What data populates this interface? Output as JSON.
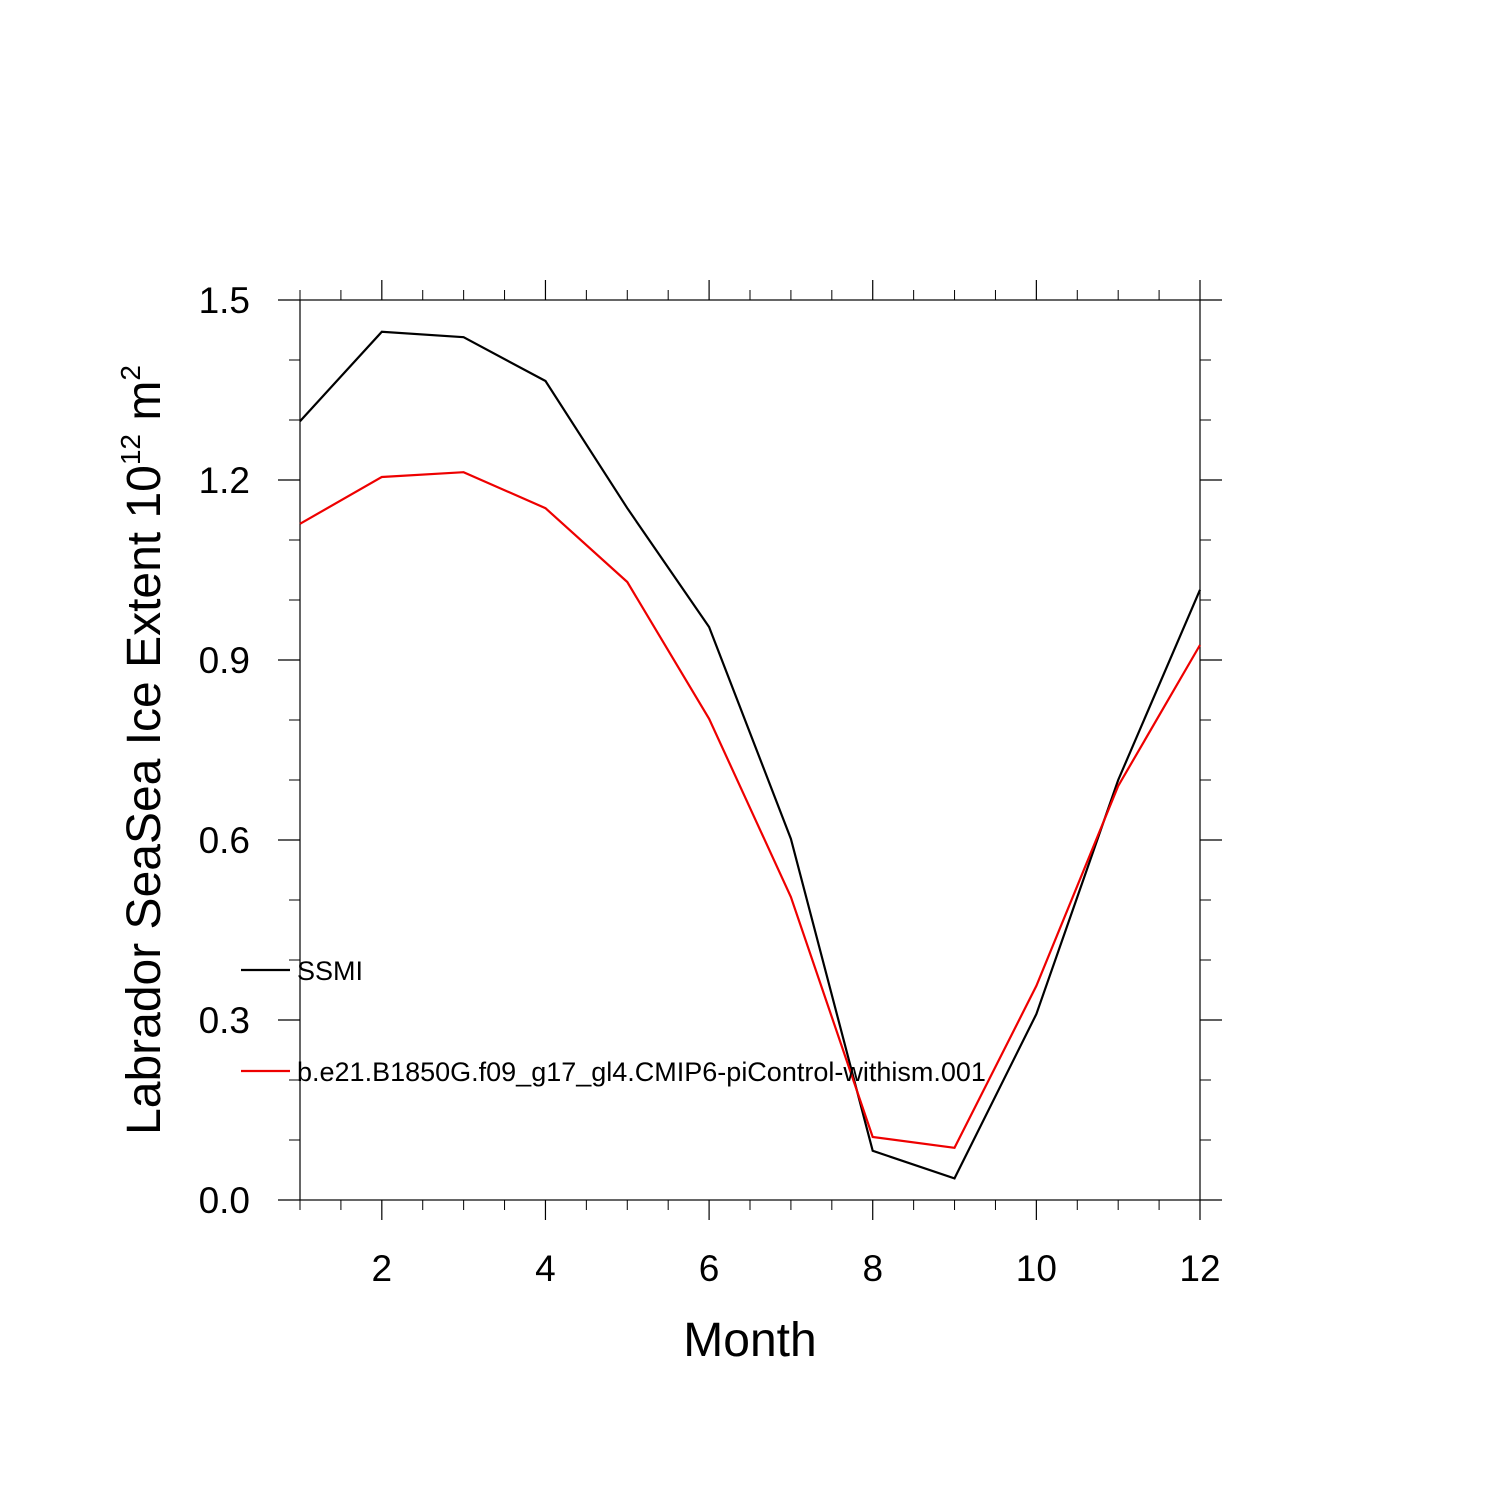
{
  "chart_data": {
    "type": "line",
    "xlabel": "Month",
    "ylabel_main": "Labrador SeaSea Ice Extent 10",
    "ylabel_exp1": "12",
    "ylabel_unit": " m",
    "ylabel_exp2": "2",
    "xlim": [
      1,
      12
    ],
    "ylim": [
      0.0,
      1.5
    ],
    "x_ticks": [
      2,
      4,
      6,
      8,
      10,
      12
    ],
    "y_ticks": [
      0.0,
      0.3,
      0.6,
      0.9,
      1.2,
      1.5
    ],
    "y_tick_labels": [
      "0.0",
      "0.3",
      "0.6",
      "0.9",
      "1.2",
      "1.5"
    ],
    "x": [
      1,
      2,
      3,
      4,
      5,
      6,
      7,
      8,
      9,
      10,
      11,
      12
    ],
    "series": [
      {
        "name": "SSMI",
        "color": "#000000",
        "values": [
          1.298,
          1.447,
          1.438,
          1.365,
          1.153,
          0.955,
          0.602,
          0.082,
          0.036,
          0.31,
          0.7,
          1.017
        ]
      },
      {
        "name": "b.e21.B1850G.f09_g17_gl4.CMIP6-piControl-withism.001",
        "color": "#ee0000",
        "values": [
          1.127,
          1.205,
          1.213,
          1.153,
          1.03,
          0.802,
          0.505,
          0.105,
          0.087,
          0.357,
          0.69,
          0.925
        ]
      }
    ],
    "legend_position": "left-bottom inside",
    "grid": false
  }
}
